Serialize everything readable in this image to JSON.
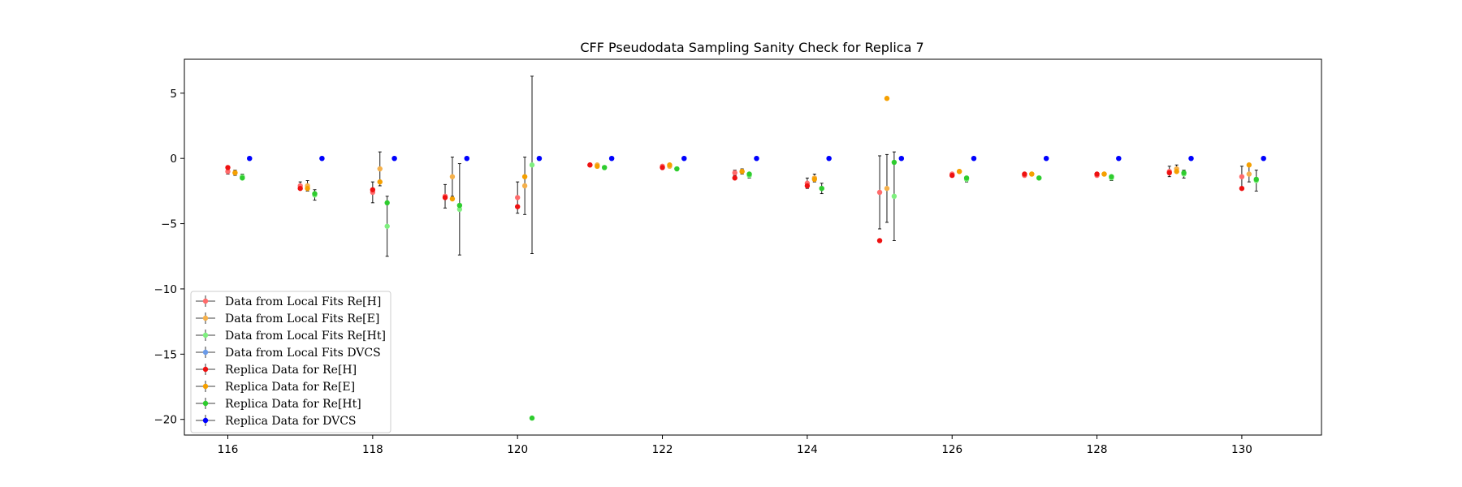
{
  "chart_data": {
    "type": "scatter",
    "title": "CFF Pseudodata Sampling Sanity Check for Replica 7",
    "xlabel": "",
    "ylabel": "",
    "xlim": [
      115.4,
      131.1
    ],
    "ylim": [
      -21.2,
      7.6
    ],
    "xticks": [
      116,
      118,
      120,
      122,
      124,
      126,
      128,
      130
    ],
    "xtick_labels": [
      "116",
      "118",
      "120",
      "122",
      "124",
      "126",
      "128",
      "130"
    ],
    "yticks": [
      5,
      0,
      -5,
      -10,
      -15,
      -20
    ],
    "ytick_labels": [
      "5",
      "0",
      "−5",
      "−10",
      "−15",
      "−20"
    ],
    "grid": false,
    "legend_position": "lower-left",
    "series": [
      {
        "name": "Data from Local Fits Re[H]",
        "color": "#ff6b6b",
        "offset": 0,
        "points": [
          {
            "x": 116,
            "y": -1.0,
            "err": 0.2
          },
          {
            "x": 117,
            "y": -2.1,
            "err": 0.3
          },
          {
            "x": 118,
            "y": -2.6,
            "err": 0.8
          },
          {
            "x": 119,
            "y": -2.9,
            "err": 0.9
          },
          {
            "x": 120,
            "y": -3.0,
            "err": 1.2
          },
          {
            "x": 121,
            "y": -0.5,
            "err": 0.1
          },
          {
            "x": 122,
            "y": -0.6,
            "err": 0.1
          },
          {
            "x": 123,
            "y": -1.1,
            "err": 0.2
          },
          {
            "x": 124,
            "y": -1.9,
            "err": 0.4
          },
          {
            "x": 125,
            "y": -2.6,
            "err": 2.8
          },
          {
            "x": 126,
            "y": -1.2,
            "err": 0.1
          },
          {
            "x": 127,
            "y": -1.3,
            "err": 0.1
          },
          {
            "x": 128,
            "y": -1.3,
            "err": 0.1
          },
          {
            "x": 129,
            "y": -1.0,
            "err": 0.4
          },
          {
            "x": 130,
            "y": -1.4,
            "err": 0.8
          }
        ]
      },
      {
        "name": "Data from Local Fits Re[E]",
        "color": "#f5b04a",
        "offset": 0.1,
        "points": [
          {
            "x": 116,
            "y": -1.1,
            "err": 0.2
          },
          {
            "x": 117,
            "y": -2.1,
            "err": 0.4
          },
          {
            "x": 118,
            "y": -0.8,
            "err": 1.3
          },
          {
            "x": 119,
            "y": -1.4,
            "err": 1.5
          },
          {
            "x": 120,
            "y": -2.1,
            "err": 2.2
          },
          {
            "x": 121,
            "y": -0.5,
            "err": 0.1
          },
          {
            "x": 122,
            "y": -0.6,
            "err": 0.1
          },
          {
            "x": 123,
            "y": -1.0,
            "err": 0.2
          },
          {
            "x": 124,
            "y": -1.5,
            "err": 0.3
          },
          {
            "x": 125,
            "y": -2.3,
            "err": 2.6
          },
          {
            "x": 126,
            "y": -1.0,
            "err": 0.1
          },
          {
            "x": 127,
            "y": -1.2,
            "err": 0.1
          },
          {
            "x": 128,
            "y": -1.2,
            "err": 0.1
          },
          {
            "x": 129,
            "y": -0.8,
            "err": 0.3
          },
          {
            "x": 130,
            "y": -1.2,
            "err": 0.6
          }
        ]
      },
      {
        "name": "Data from Local Fits Re[Ht]",
        "color": "#7fef7f",
        "offset": 0.2,
        "points": [
          {
            "x": 116,
            "y": -1.4,
            "err": 0.2
          },
          {
            "x": 117,
            "y": -2.8,
            "err": 0.4
          },
          {
            "x": 118,
            "y": -5.2,
            "err": 2.3
          },
          {
            "x": 119,
            "y": -3.9,
            "err": 3.5
          },
          {
            "x": 120,
            "y": -0.5,
            "err": 6.8
          },
          {
            "x": 121,
            "y": -0.7,
            "err": 0.1
          },
          {
            "x": 122,
            "y": -0.8,
            "err": 0.1
          },
          {
            "x": 123,
            "y": -1.3,
            "err": 0.2
          },
          {
            "x": 124,
            "y": -2.3,
            "err": 0.4
          },
          {
            "x": 125,
            "y": -2.9,
            "err": 3.4
          },
          {
            "x": 126,
            "y": -1.6,
            "err": 0.2
          },
          {
            "x": 127,
            "y": -1.5,
            "err": 0.1
          },
          {
            "x": 128,
            "y": -1.5,
            "err": 0.2
          },
          {
            "x": 129,
            "y": -1.2,
            "err": 0.3
          },
          {
            "x": 130,
            "y": -1.7,
            "err": 0.8
          }
        ]
      },
      {
        "name": "Data from Local Fits DVCS",
        "color": "#6a9ae8",
        "offset": 0.3,
        "points": [
          {
            "x": 116,
            "y": 0.0,
            "err": 0.02
          },
          {
            "x": 117,
            "y": 0.0,
            "err": 0.02
          },
          {
            "x": 118,
            "y": 0.0,
            "err": 0.02
          },
          {
            "x": 119,
            "y": 0.0,
            "err": 0.02
          },
          {
            "x": 120,
            "y": 0.0,
            "err": 0.02
          },
          {
            "x": 121,
            "y": 0.0,
            "err": 0.02
          },
          {
            "x": 122,
            "y": 0.0,
            "err": 0.02
          },
          {
            "x": 123,
            "y": 0.0,
            "err": 0.02
          },
          {
            "x": 124,
            "y": 0.0,
            "err": 0.02
          },
          {
            "x": 125,
            "y": 0.0,
            "err": 0.02
          },
          {
            "x": 126,
            "y": 0.0,
            "err": 0.02
          },
          {
            "x": 127,
            "y": 0.0,
            "err": 0.02
          },
          {
            "x": 128,
            "y": 0.0,
            "err": 0.02
          },
          {
            "x": 129,
            "y": 0.0,
            "err": 0.02
          },
          {
            "x": 130,
            "y": 0.0,
            "err": 0.02
          }
        ]
      },
      {
        "name": "Replica Data for Re[H]",
        "color": "#ee1111",
        "offset": 0,
        "points": [
          {
            "x": 116,
            "y": -0.7,
            "err": 0
          },
          {
            "x": 117,
            "y": -2.3,
            "err": 0
          },
          {
            "x": 118,
            "y": -2.4,
            "err": 0
          },
          {
            "x": 119,
            "y": -3.0,
            "err": 0
          },
          {
            "x": 120,
            "y": -3.7,
            "err": 0
          },
          {
            "x": 121,
            "y": -0.5,
            "err": 0
          },
          {
            "x": 122,
            "y": -0.7,
            "err": 0
          },
          {
            "x": 123,
            "y": -1.5,
            "err": 0
          },
          {
            "x": 124,
            "y": -2.1,
            "err": 0
          },
          {
            "x": 125,
            "y": -6.3,
            "err": 0
          },
          {
            "x": 126,
            "y": -1.3,
            "err": 0
          },
          {
            "x": 127,
            "y": -1.2,
            "err": 0
          },
          {
            "x": 128,
            "y": -1.2,
            "err": 0
          },
          {
            "x": 129,
            "y": -1.1,
            "err": 0
          },
          {
            "x": 130,
            "y": -2.3,
            "err": 0
          }
        ]
      },
      {
        "name": "Replica Data for Re[E]",
        "color": "#f5a000",
        "offset": 0.1,
        "points": [
          {
            "x": 116,
            "y": -1.1,
            "err": 0
          },
          {
            "x": 117,
            "y": -2.3,
            "err": 0
          },
          {
            "x": 118,
            "y": -1.8,
            "err": 0
          },
          {
            "x": 119,
            "y": -3.1,
            "err": 0
          },
          {
            "x": 120,
            "y": -1.4,
            "err": 0
          },
          {
            "x": 121,
            "y": -0.6,
            "err": 0
          },
          {
            "x": 122,
            "y": -0.5,
            "err": 0
          },
          {
            "x": 123,
            "y": -1.0,
            "err": 0
          },
          {
            "x": 124,
            "y": -1.6,
            "err": 0
          },
          {
            "x": 125,
            "y": 4.6,
            "err": 0
          },
          {
            "x": 126,
            "y": -1.0,
            "err": 0
          },
          {
            "x": 127,
            "y": -1.2,
            "err": 0
          },
          {
            "x": 128,
            "y": -1.2,
            "err": 0
          },
          {
            "x": 129,
            "y": -1.0,
            "err": 0
          },
          {
            "x": 130,
            "y": -0.5,
            "err": 0
          }
        ]
      },
      {
        "name": "Replica Data for Re[Ht]",
        "color": "#2ecc2e",
        "offset": 0.2,
        "points": [
          {
            "x": 116,
            "y": -1.5,
            "err": 0
          },
          {
            "x": 117,
            "y": -2.7,
            "err": 0
          },
          {
            "x": 118,
            "y": -3.4,
            "err": 0
          },
          {
            "x": 119,
            "y": -3.6,
            "err": 0
          },
          {
            "x": 120,
            "y": -19.9,
            "err": 0
          },
          {
            "x": 121,
            "y": -0.7,
            "err": 0
          },
          {
            "x": 122,
            "y": -0.8,
            "err": 0
          },
          {
            "x": 123,
            "y": -1.2,
            "err": 0
          },
          {
            "x": 124,
            "y": -2.3,
            "err": 0
          },
          {
            "x": 125,
            "y": -0.3,
            "err": 0
          },
          {
            "x": 126,
            "y": -1.5,
            "err": 0
          },
          {
            "x": 127,
            "y": -1.5,
            "err": 0
          },
          {
            "x": 128,
            "y": -1.4,
            "err": 0
          },
          {
            "x": 129,
            "y": -1.1,
            "err": 0
          },
          {
            "x": 130,
            "y": -1.6,
            "err": 0
          }
        ]
      },
      {
        "name": "Replica Data for DVCS",
        "color": "#0000ff",
        "offset": 0.3,
        "points": [
          {
            "x": 116,
            "y": 0.0,
            "err": 0
          },
          {
            "x": 117,
            "y": 0.0,
            "err": 0
          },
          {
            "x": 118,
            "y": 0.0,
            "err": 0
          },
          {
            "x": 119,
            "y": 0.0,
            "err": 0
          },
          {
            "x": 120,
            "y": 0.0,
            "err": 0
          },
          {
            "x": 121,
            "y": 0.0,
            "err": 0
          },
          {
            "x": 122,
            "y": 0.0,
            "err": 0
          },
          {
            "x": 123,
            "y": 0.0,
            "err": 0
          },
          {
            "x": 124,
            "y": 0.0,
            "err": 0
          },
          {
            "x": 125,
            "y": 0.0,
            "err": 0
          },
          {
            "x": 126,
            "y": 0.0,
            "err": 0
          },
          {
            "x": 127,
            "y": 0.0,
            "err": 0
          },
          {
            "x": 128,
            "y": 0.0,
            "err": 0
          },
          {
            "x": 129,
            "y": 0.0,
            "err": 0
          },
          {
            "x": 130,
            "y": 0.0,
            "err": 0
          }
        ]
      }
    ]
  }
}
